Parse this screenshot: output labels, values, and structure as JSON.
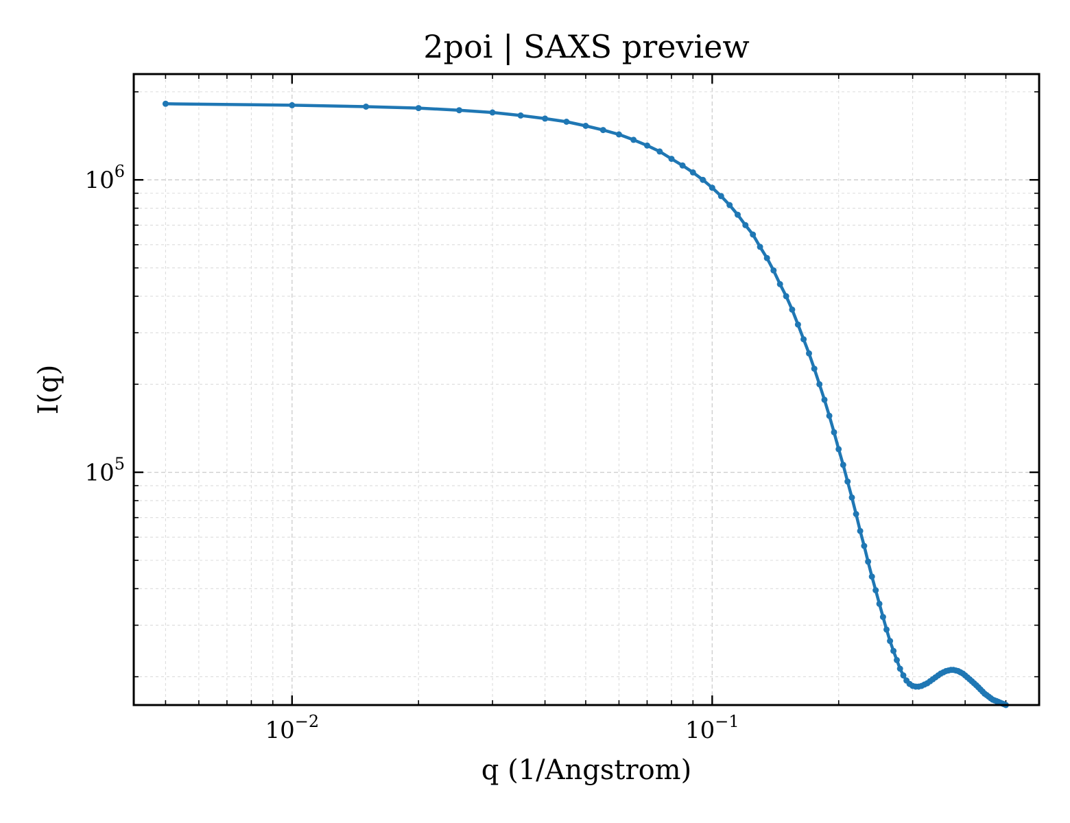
{
  "chart_data": {
    "type": "line",
    "title": "2poi | SAXS preview",
    "xlabel": "q (1/Angstrom)",
    "ylabel": "I(q)",
    "xscale": "log",
    "yscale": "log",
    "xlim": [
      0.0042,
      0.6
    ],
    "ylim": [
      16000,
      2300000
    ],
    "grid": true,
    "x_ticks": [
      {
        "value": 0.01,
        "base": "10",
        "exp": "−2"
      },
      {
        "value": 0.1,
        "base": "10",
        "exp": "−1"
      }
    ],
    "y_ticks": [
      {
        "value": 100000,
        "base": "10",
        "exp": "5"
      },
      {
        "value": 1000000,
        "base": "10",
        "exp": "6"
      }
    ],
    "color": "#1f77b4",
    "series": [
      {
        "x": [
          0.005,
          0.01,
          0.015,
          0.02,
          0.025,
          0.03,
          0.035,
          0.04,
          0.045,
          0.05,
          0.055,
          0.06,
          0.065,
          0.07,
          0.075,
          0.08,
          0.085,
          0.09,
          0.095,
          0.1,
          0.105,
          0.11,
          0.115,
          0.12,
          0.125,
          0.13,
          0.135,
          0.14,
          0.145,
          0.15,
          0.155,
          0.16,
          0.165,
          0.17,
          0.175,
          0.18,
          0.185,
          0.19,
          0.195,
          0.2,
          0.205,
          0.21,
          0.215,
          0.22,
          0.225,
          0.23,
          0.235,
          0.24,
          0.245,
          0.25,
          0.255,
          0.26,
          0.265,
          0.27,
          0.275,
          0.28,
          0.285,
          0.29,
          0.295,
          0.3,
          0.305,
          0.31,
          0.315,
          0.32,
          0.325,
          0.33,
          0.335,
          0.34,
          0.345,
          0.35,
          0.355,
          0.36,
          0.365,
          0.37,
          0.375,
          0.38,
          0.385,
          0.39,
          0.395,
          0.4,
          0.405,
          0.41,
          0.415,
          0.42,
          0.425,
          0.43,
          0.435,
          0.44,
          0.445,
          0.45,
          0.455,
          0.46,
          0.465,
          0.47,
          0.475,
          0.48,
          0.485,
          0.49,
          0.495,
          0.5
        ],
        "y": [
          1820000,
          1800000,
          1780000,
          1760000,
          1730000,
          1700000,
          1660000,
          1620000,
          1580000,
          1530000,
          1480000,
          1430000,
          1370000,
          1310000,
          1250000,
          1180000,
          1120000,
          1060000,
          1000000,
          940000,
          880000,
          820000,
          760000,
          700000,
          650000,
          590000,
          540000,
          490000,
          440000,
          400000,
          360000,
          320000,
          285000,
          255000,
          226000,
          200000,
          177000,
          156000,
          137000,
          120000,
          106000,
          93000,
          82000,
          72000,
          63000,
          56000,
          49500,
          44000,
          39500,
          35500,
          32000,
          29000,
          26500,
          24500,
          22800,
          21300,
          20200,
          19400,
          18900,
          18600,
          18500,
          18500,
          18600,
          18800,
          19000,
          19300,
          19600,
          19900,
          20200,
          20500,
          20700,
          20900,
          21000,
          21100,
          21100,
          21000,
          20900,
          20700,
          20500,
          20200,
          19900,
          19600,
          19300,
          19000,
          18700,
          18400,
          18100,
          17800,
          17500,
          17300,
          17100,
          16900,
          16700,
          16600,
          16500,
          16400,
          16300,
          16200,
          16100,
          16000
        ]
      }
    ]
  }
}
